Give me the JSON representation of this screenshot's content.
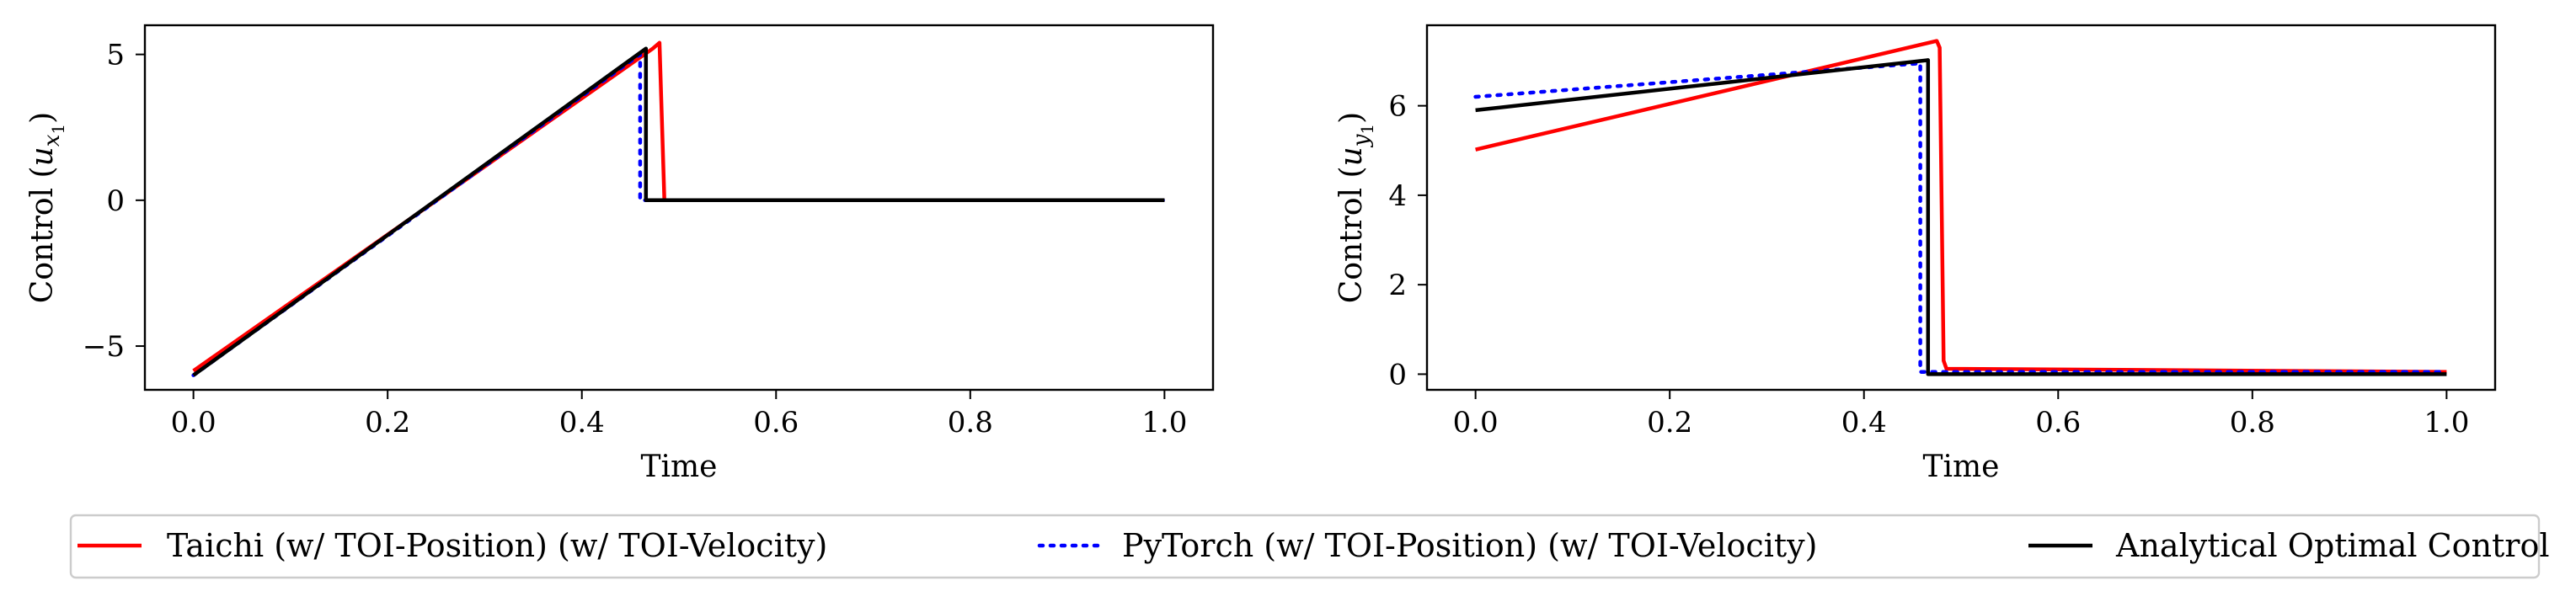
{
  "chart_data": [
    {
      "type": "line",
      "xlabel": "Time",
      "ylabel_text": "Control (",
      "ylabel_var": "u",
      "ylabel_sub": "x",
      "ylabel_subsub": "1",
      "ylabel_close": ")",
      "xlim": [
        -0.05,
        1.05
      ],
      "ylim": [
        -6.5,
        6.0
      ],
      "xticks": [
        0.0,
        0.2,
        0.4,
        0.6,
        0.8,
        1.0
      ],
      "xtick_labels": [
        "0.0",
        "0.2",
        "0.4",
        "0.6",
        "0.8",
        "1.0"
      ],
      "yticks": [
        -5,
        0,
        5
      ],
      "ytick_labels": [
        "−5",
        "0",
        "5"
      ],
      "series": [
        {
          "name": "Taichi (w/ TOI-Position) (w/ TOI-Velocity)",
          "color": "#ff0000",
          "style": "solid",
          "x": [
            0.0,
            0.473,
            0.48,
            0.485,
            1.0
          ],
          "y": [
            -5.85,
            5.2,
            5.4,
            0.0,
            0.0
          ]
        },
        {
          "name": "PyTorch (w/ TOI-Position) (w/ TOI-Velocity)",
          "color": "#0000ff",
          "style": "dotted",
          "x": [
            0.0,
            0.46,
            0.46,
            1.0
          ],
          "y": [
            -6.0,
            5.0,
            0.0,
            0.0
          ]
        },
        {
          "name": "Analytical Optimal Control",
          "color": "#000000",
          "style": "solid",
          "x": [
            0.0,
            0.466,
            0.466,
            1.0
          ],
          "y": [
            -6.0,
            5.2,
            0.0,
            0.0
          ]
        }
      ]
    },
    {
      "type": "line",
      "xlabel": "Time",
      "ylabel_text": "Control (",
      "ylabel_var": "u",
      "ylabel_sub": "y",
      "ylabel_subsub": "1",
      "ylabel_close": ")",
      "xlim": [
        -0.05,
        1.05
      ],
      "ylim": [
        -0.35,
        7.8
      ],
      "xticks": [
        0.0,
        0.2,
        0.4,
        0.6,
        0.8,
        1.0
      ],
      "xtick_labels": [
        "0.0",
        "0.2",
        "0.4",
        "0.6",
        "0.8",
        "1.0"
      ],
      "yticks": [
        0,
        2,
        4,
        6
      ],
      "ytick_labels": [
        "0",
        "2",
        "4",
        "6"
      ],
      "series": [
        {
          "name": "Taichi (w/ TOI-Position) (w/ TOI-Velocity)",
          "color": "#ff0000",
          "style": "solid",
          "x": [
            0.0,
            0.475,
            0.478,
            0.482,
            0.485,
            1.0
          ],
          "y": [
            5.02,
            7.45,
            7.3,
            0.3,
            0.12,
            0.05
          ]
        },
        {
          "name": "PyTorch (w/ TOI-Position) (w/ TOI-Velocity)",
          "color": "#0000ff",
          "style": "dotted",
          "x": [
            0.0,
            0.458,
            0.458,
            1.0
          ],
          "y": [
            6.2,
            6.95,
            0.05,
            0.05
          ]
        },
        {
          "name": "Analytical Optimal Control",
          "color": "#000000",
          "style": "solid",
          "x": [
            0.0,
            0.466,
            0.466,
            1.0
          ],
          "y": [
            5.9,
            7.02,
            0.0,
            0.0
          ]
        }
      ]
    }
  ],
  "legend": {
    "entries": [
      {
        "label": "Taichi (w/ TOI-Position) (w/ TOI-Velocity)",
        "color": "#ff0000",
        "style": "solid"
      },
      {
        "label": "PyTorch (w/ TOI-Position) (w/ TOI-Velocity)",
        "color": "#0000ff",
        "style": "dotted"
      },
      {
        "label": "Analytical Optimal Control",
        "color": "#000000",
        "style": "solid"
      }
    ]
  }
}
